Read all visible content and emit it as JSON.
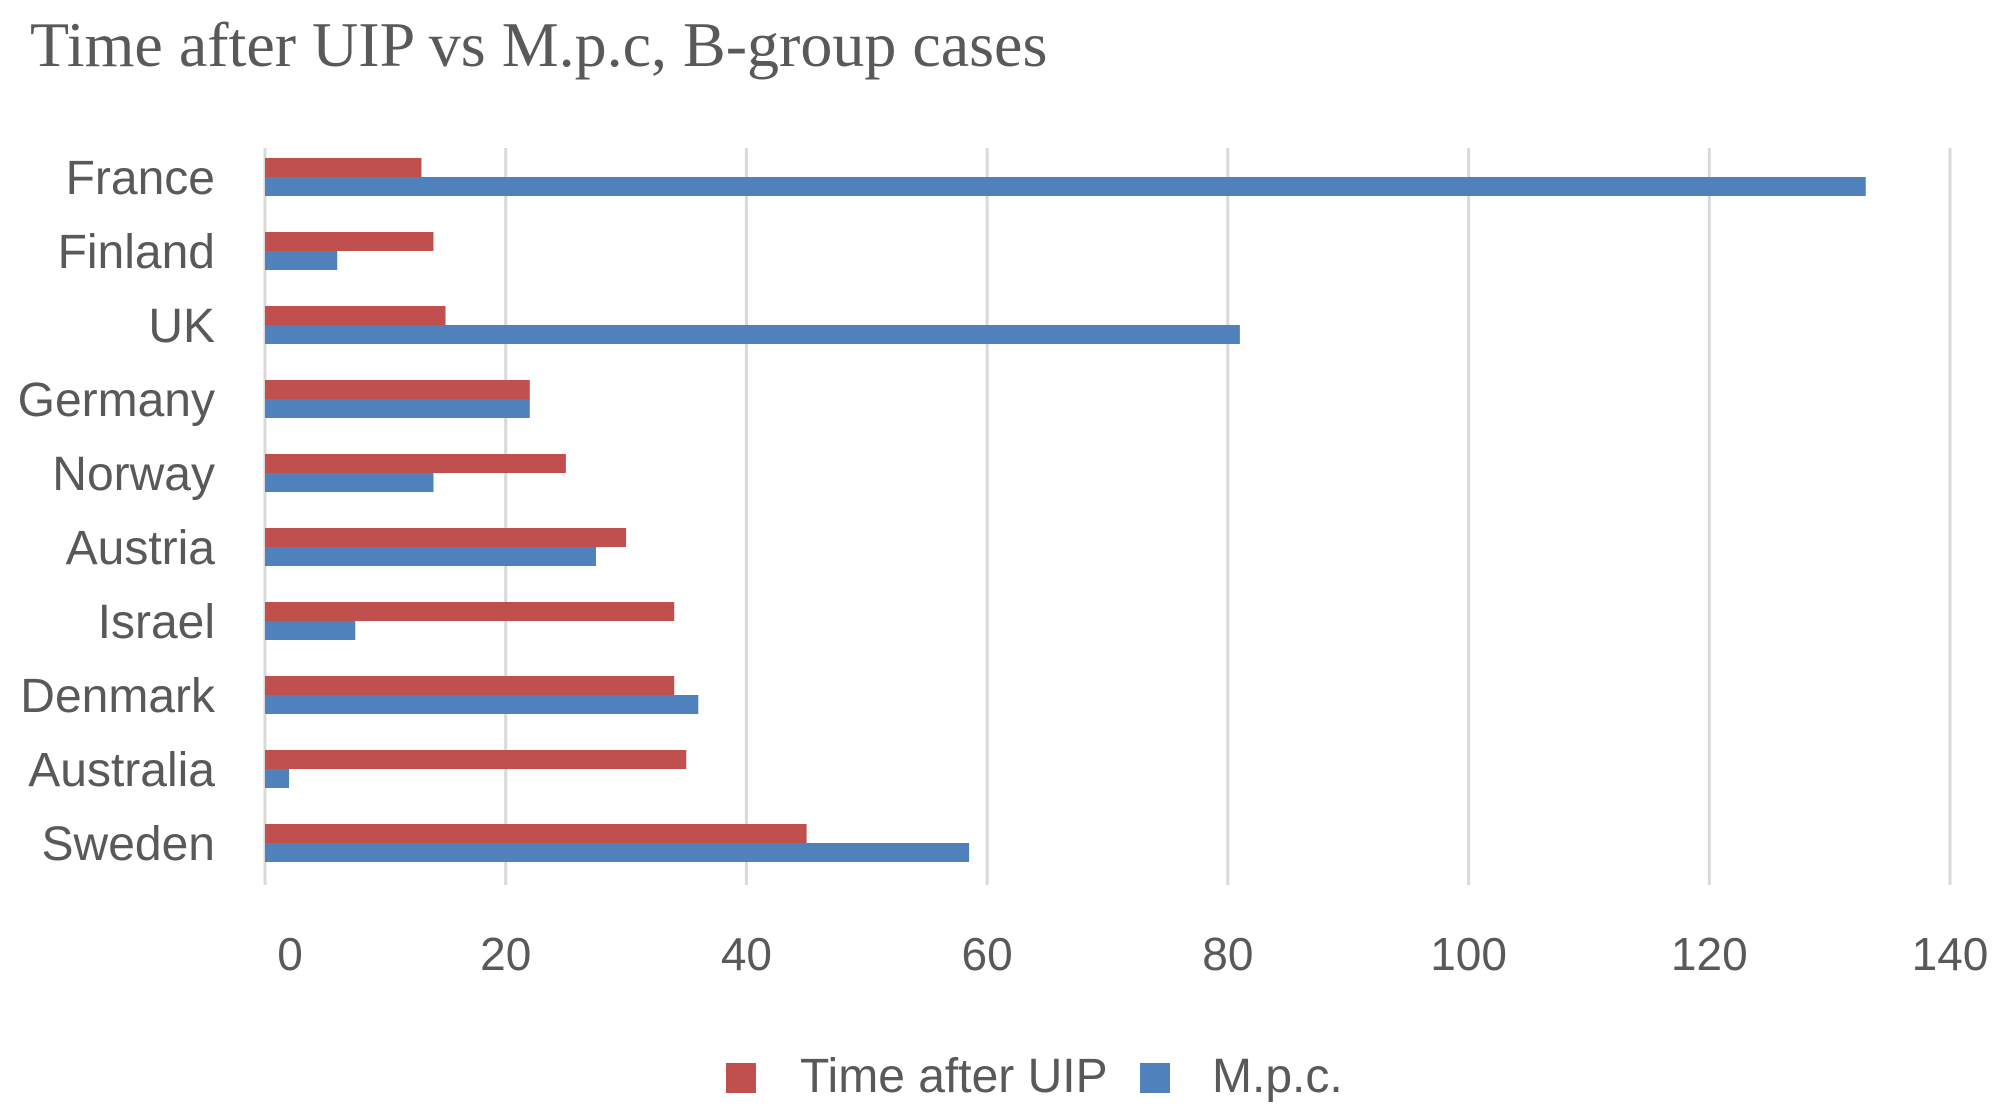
{
  "chart_data": {
    "type": "bar",
    "orientation": "horizontal",
    "title": "Time after UIP vs M.p.c, B-group cases",
    "xlabel": "",
    "ylabel": "",
    "categories": [
      "France",
      "Finland",
      "UK",
      "Germany",
      "Norway",
      "Austria",
      "Israel",
      "Denmark",
      "Australia",
      "Sweden"
    ],
    "series": [
      {
        "name": "Time after UIP",
        "color": "#c0504d",
        "values": [
          13,
          14,
          15,
          22,
          25,
          30,
          34,
          34,
          35,
          45
        ]
      },
      {
        "name": "M.p.c.",
        "color": "#4f81bd",
        "values": [
          133,
          6,
          81,
          22,
          14,
          27.5,
          7.5,
          36,
          2,
          58.5
        ]
      }
    ],
    "xlim": [
      0,
      140
    ],
    "xticks": [
      "0",
      "20",
      "40",
      "60",
      "80",
      "100",
      "120",
      "140"
    ],
    "grid": true,
    "legend_position": "bottom",
    "gridline_color": "#d9d9d9",
    "label_color": "#595959"
  }
}
